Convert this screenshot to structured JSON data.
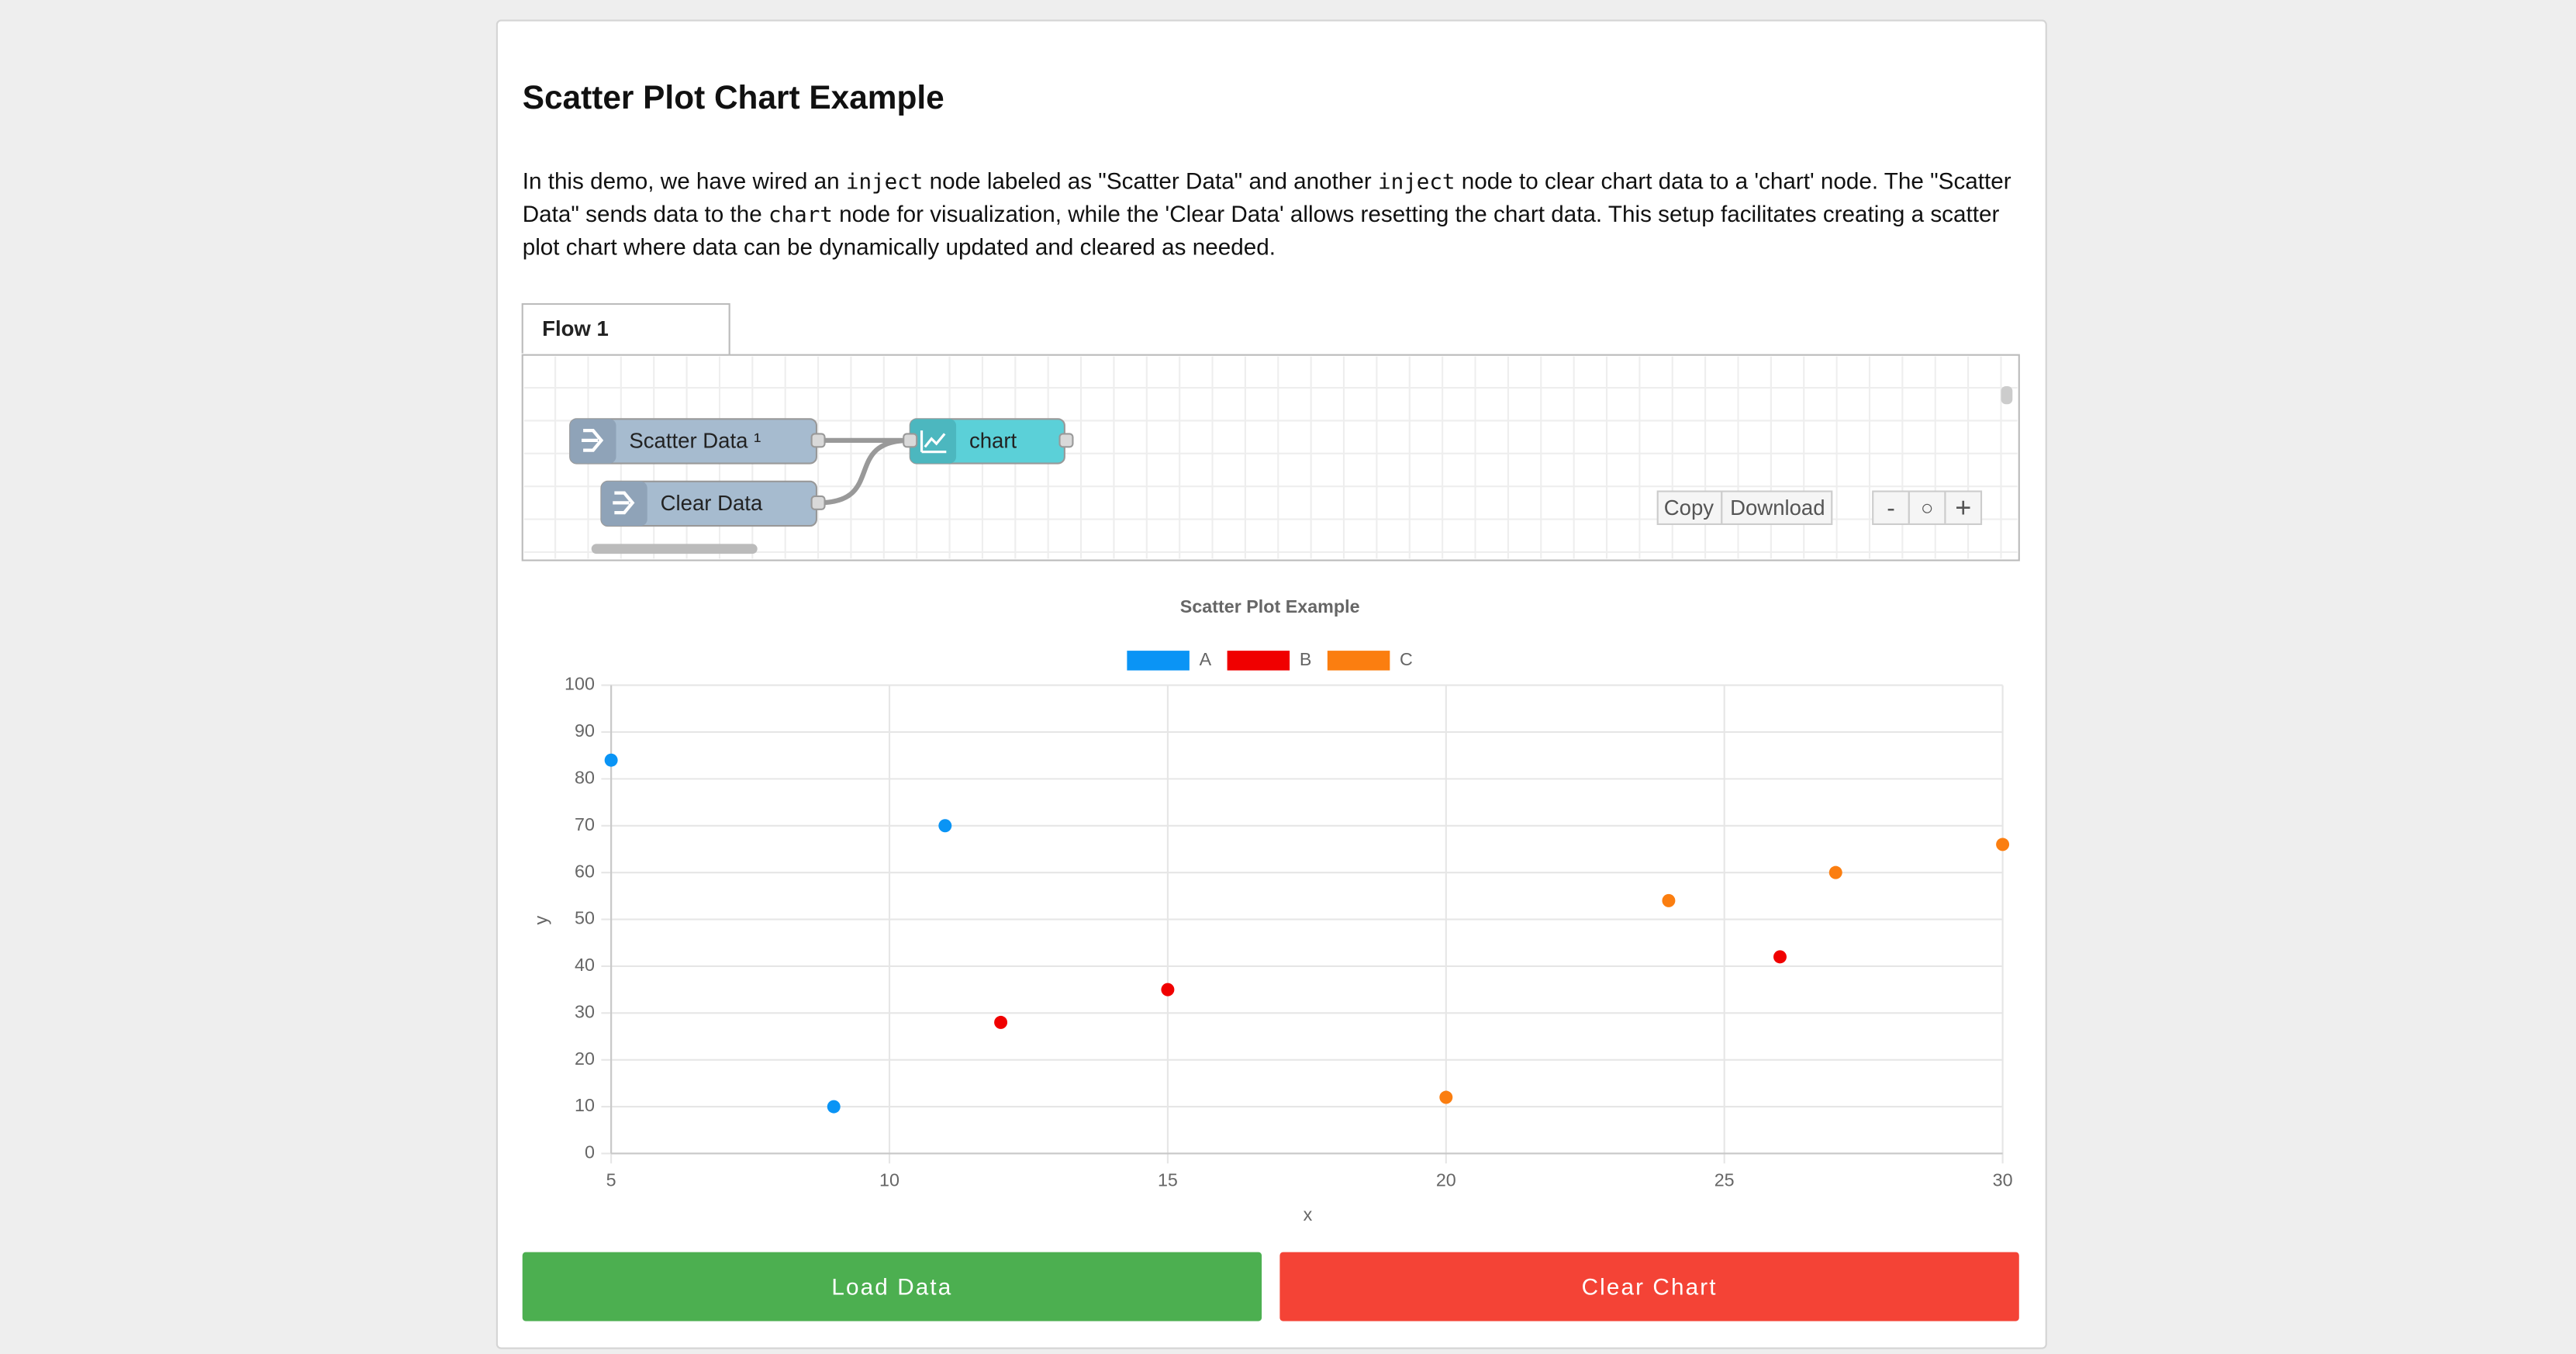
{
  "header": {
    "title": "Scatter Plot Chart Example"
  },
  "description": [
    "In this demo, we have wired an ",
    "inject",
    " node labeled as \"Scatter Data\" and another ",
    "inject",
    " node to clear chart data to a 'chart' node. The \"Scatter Data\" sends data to the ",
    "chart",
    " node for visualization, while the 'Clear Data' allows resetting the chart data. This setup facilitates creating a scatter plot chart where data can be dynamically updated and cleared as needed."
  ],
  "flow": {
    "tab": "Flow 1",
    "nodes": [
      {
        "label": "Scatter Data ¹"
      },
      {
        "label": "Clear Data"
      },
      {
        "label": "chart"
      }
    ],
    "toolbar": [
      "Copy",
      "Download",
      "-",
      "○",
      "+"
    ]
  },
  "chart_data": {
    "type": "scatter",
    "title": "Scatter Plot Example",
    "x_label": "x",
    "y_label": "y",
    "xlim": [
      5,
      30
    ],
    "xticks": [
      5,
      10,
      15,
      20,
      25,
      30
    ],
    "ylim": [
      0,
      100
    ],
    "yticks": [
      0,
      10,
      20,
      30,
      40,
      50,
      60,
      70,
      80,
      90,
      100
    ],
    "grid": true,
    "series": [
      {
        "name": "A",
        "color": "#0a94f5",
        "x": [
          5,
          9,
          11
        ],
        "values": [
          84,
          10,
          70
        ]
      },
      {
        "name": "B",
        "color": "#f00000",
        "x": [
          12,
          15,
          26
        ],
        "values": [
          28,
          35,
          42
        ]
      },
      {
        "name": "C",
        "color": "#fb7e10",
        "x": [
          20,
          24,
          27,
          30
        ],
        "values": [
          12,
          54,
          60,
          66
        ]
      }
    ]
  },
  "buttons": [
    "Load Data",
    "Clear Chart"
  ]
}
